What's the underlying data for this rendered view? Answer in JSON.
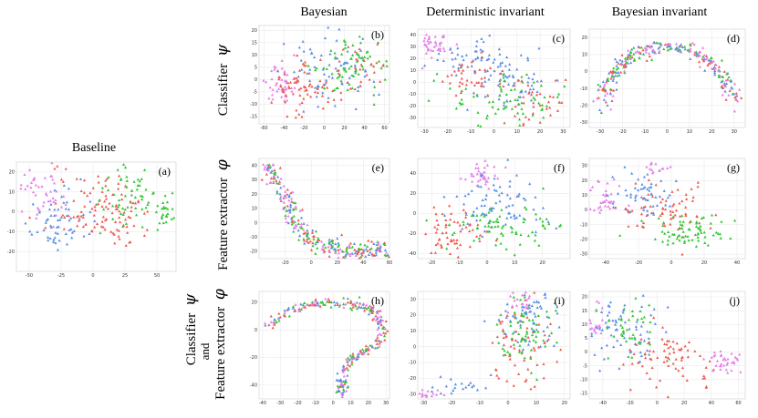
{
  "figure": {
    "column_titles": [
      "Bayesian",
      "Deterministic invariant",
      "Bayesian invariant"
    ],
    "baseline_title": "Baseline",
    "row_labels": [
      {
        "text": "Classifier",
        "symbol": "ψ"
      },
      {
        "text": "Feature extractor",
        "symbol": "φ"
      },
      {
        "line1": "Classifier",
        "symbol1": "ψ",
        "line2": "and",
        "line3": "Feature extractor",
        "symbol3": "φ"
      }
    ]
  },
  "colors": {
    "red": "#ee5a4f",
    "green": "#2fc62f",
    "blue": "#5b8ee6",
    "pink": "#e57ee8"
  },
  "chart_data": [
    {
      "id": "a",
      "label": "(a)",
      "type": "scatter",
      "shape": "blob",
      "xticks": [
        -50,
        -25,
        0,
        25,
        50
      ],
      "yticks": [
        20,
        10,
        0,
        -10,
        -20
      ],
      "xlim": [
        -60,
        65
      ],
      "ylim": [
        -30,
        25
      ],
      "clusters": [
        {
          "class": "pink",
          "cx": -40,
          "cy": 10,
          "sx": 9,
          "sy": 7,
          "n": 45
        },
        {
          "class": "blue",
          "cx": -30,
          "cy": -5,
          "sx": 12,
          "sy": 8,
          "n": 60
        },
        {
          "class": "red",
          "cx": 0,
          "cy": 5,
          "sx": 18,
          "sy": 9,
          "n": 70
        },
        {
          "class": "green",
          "cx": 30,
          "cy": 8,
          "sx": 14,
          "sy": 8,
          "n": 55
        },
        {
          "class": "green",
          "cx": 55,
          "cy": 0,
          "sx": 4,
          "sy": 5,
          "n": 25
        },
        {
          "class": "red",
          "cx": 20,
          "cy": -5,
          "sx": 16,
          "sy": 6,
          "n": 40
        }
      ]
    },
    {
      "id": "b",
      "label": "(b)",
      "type": "scatter",
      "shape": "blob",
      "xticks": [
        -60,
        -40,
        -20,
        0,
        20,
        40,
        60
      ],
      "yticks": [
        20,
        15,
        10,
        5,
        0,
        -5,
        -10,
        -15
      ],
      "xlim": [
        -65,
        65
      ],
      "ylim": [
        -18,
        22
      ],
      "clusters": [
        {
          "class": "pink",
          "cx": -45,
          "cy": -2,
          "sx": 9,
          "sy": 5,
          "n": 45
        },
        {
          "class": "red",
          "cx": -25,
          "cy": -5,
          "sx": 16,
          "sy": 5,
          "n": 70
        },
        {
          "class": "blue",
          "cx": 5,
          "cy": 3,
          "sx": 22,
          "sy": 7,
          "n": 70
        },
        {
          "class": "green",
          "cx": 25,
          "cy": 5,
          "sx": 18,
          "sy": 6,
          "n": 70
        },
        {
          "class": "red",
          "cx": 35,
          "cy": 5,
          "sx": 14,
          "sy": 5,
          "n": 30
        }
      ]
    },
    {
      "id": "c",
      "label": "(c)",
      "type": "scatter",
      "shape": "blob",
      "xticks": [
        -30,
        -20,
        -10,
        0,
        10,
        20,
        30
      ],
      "yticks": [
        40,
        30,
        20,
        10,
        0,
        -10,
        -20,
        -30
      ],
      "xlim": [
        -33,
        33
      ],
      "ylim": [
        -38,
        45
      ],
      "clusters": [
        {
          "class": "pink",
          "cx": -25,
          "cy": 33,
          "sx": 4,
          "sy": 6,
          "n": 40
        },
        {
          "class": "blue",
          "cx": -8,
          "cy": 20,
          "sx": 9,
          "sy": 8,
          "n": 55
        },
        {
          "class": "blue",
          "cx": 10,
          "cy": 0,
          "sx": 10,
          "sy": 9,
          "n": 50
        },
        {
          "class": "green",
          "cx": 5,
          "cy": -15,
          "sx": 12,
          "sy": 10,
          "n": 75
        },
        {
          "class": "red",
          "cx": -10,
          "cy": 5,
          "sx": 7,
          "sy": 8,
          "n": 40
        },
        {
          "class": "red",
          "cx": 20,
          "cy": -15,
          "sx": 8,
          "sy": 10,
          "n": 40
        }
      ]
    },
    {
      "id": "d",
      "label": "(d)",
      "type": "scatter",
      "shape": "arc",
      "xticks": [
        -30,
        -20,
        -10,
        0,
        10,
        20,
        30
      ],
      "yticks": [
        20,
        10,
        0,
        -10,
        -20,
        -30
      ],
      "xlim": [
        -35,
        35
      ],
      "ylim": [
        -33,
        25
      ],
      "arc": {
        "cx": 0,
        "cy": -25,
        "rx": 30,
        "ry": 40,
        "from": 175,
        "to": 5,
        "sigma": 2.2
      },
      "mix": [
        "red",
        "green",
        "blue",
        "pink"
      ],
      "n": 280
    },
    {
      "id": "e",
      "label": "(e)",
      "type": "scatter",
      "shape": "curve",
      "xticks": [
        -20,
        0,
        20,
        40,
        60
      ],
      "yticks": [
        40,
        30,
        20,
        10,
        0,
        -10,
        -20
      ],
      "xlim": [
        -40,
        60
      ],
      "ylim": [
        -25,
        45
      ],
      "curve": [
        [
          -35,
          38
        ],
        [
          -25,
          30
        ],
        [
          -18,
          15
        ],
        [
          -12,
          0
        ],
        [
          0,
          -12
        ],
        [
          15,
          -18
        ],
        [
          30,
          -20
        ],
        [
          45,
          -20
        ],
        [
          55,
          -17
        ]
      ],
      "sigma": 3.2,
      "mix": [
        "pink",
        "red",
        "green",
        "blue"
      ],
      "n": 280
    },
    {
      "id": "f",
      "label": "(f)",
      "type": "scatter",
      "shape": "blob",
      "xticks": [
        -20,
        -10,
        0,
        10,
        20
      ],
      "yticks": [
        40,
        20,
        0,
        -20,
        -40
      ],
      "xlim": [
        -25,
        30
      ],
      "ylim": [
        -45,
        55
      ],
      "clusters": [
        {
          "class": "pink",
          "cx": -2,
          "cy": 40,
          "sx": 4,
          "sy": 7,
          "n": 35
        },
        {
          "class": "blue",
          "cx": 5,
          "cy": 10,
          "sx": 9,
          "sy": 15,
          "n": 80
        },
        {
          "class": "green",
          "cx": 5,
          "cy": -15,
          "sx": 12,
          "sy": 10,
          "n": 75
        },
        {
          "class": "red",
          "cx": -12,
          "cy": -20,
          "sx": 7,
          "sy": 12,
          "n": 60
        }
      ]
    },
    {
      "id": "g",
      "label": "(g)",
      "type": "scatter",
      "shape": "blob",
      "xticks": [
        -40,
        -20,
        0,
        20,
        40
      ],
      "yticks": [
        30,
        20,
        10,
        0,
        -10,
        -20,
        -30
      ],
      "xlim": [
        -50,
        45
      ],
      "ylim": [
        -33,
        35
      ],
      "clusters": [
        {
          "class": "pink",
          "cx": -40,
          "cy": 8,
          "sx": 6,
          "sy": 7,
          "n": 35
        },
        {
          "class": "blue",
          "cx": -20,
          "cy": 10,
          "sx": 10,
          "sy": 8,
          "n": 55
        },
        {
          "class": "red",
          "cx": 0,
          "cy": 0,
          "sx": 14,
          "sy": 10,
          "n": 70
        },
        {
          "class": "green",
          "cx": 10,
          "cy": -15,
          "sx": 12,
          "sy": 6,
          "n": 70
        },
        {
          "class": "pink",
          "cx": -10,
          "cy": 28,
          "sx": 4,
          "sy": 3,
          "n": 15
        }
      ]
    },
    {
      "id": "h",
      "label": "(h)",
      "type": "scatter",
      "shape": "curve",
      "xticks": [
        -40,
        -30,
        -20,
        -10,
        0,
        10,
        20,
        30
      ],
      "yticks": [
        20,
        0,
        -20,
        -40
      ],
      "xlim": [
        -42,
        32
      ],
      "ylim": [
        -50,
        28
      ],
      "curve": [
        [
          -38,
          2
        ],
        [
          -28,
          12
        ],
        [
          -15,
          18
        ],
        [
          -5,
          20
        ],
        [
          5,
          20
        ],
        [
          15,
          18
        ],
        [
          22,
          15
        ],
        [
          27,
          8
        ],
        [
          28,
          0
        ],
        [
          25,
          -10
        ],
        [
          18,
          -15
        ],
        [
          10,
          -20
        ],
        [
          6,
          -30
        ],
        [
          5,
          -40
        ],
        [
          4,
          -46
        ]
      ],
      "sigma": 1.6,
      "mix": [
        "pink",
        "red",
        "green",
        "blue"
      ],
      "n": 280
    },
    {
      "id": "i",
      "label": "(i)",
      "type": "scatter",
      "shape": "blob",
      "xticks": [
        -30,
        -20,
        -10,
        0,
        10,
        20
      ],
      "yticks": [
        30,
        20,
        10,
        0,
        -10,
        -20,
        -30
      ],
      "xlim": [
        -32,
        22
      ],
      "ylim": [
        -33,
        35
      ],
      "clusters": [
        {
          "class": "pink",
          "cx": -28,
          "cy": -30,
          "sx": 3,
          "sy": 2,
          "n": 15
        },
        {
          "class": "blue",
          "cx": -18,
          "cy": -25,
          "sx": 5,
          "sy": 3,
          "n": 20
        },
        {
          "class": "red",
          "cx": 5,
          "cy": 0,
          "sx": 6,
          "sy": 15,
          "n": 65
        },
        {
          "class": "green",
          "cx": 5,
          "cy": 10,
          "sx": 5,
          "sy": 12,
          "n": 65
        },
        {
          "class": "blue",
          "cx": 7,
          "cy": 15,
          "sx": 5,
          "sy": 12,
          "n": 65
        },
        {
          "class": "pink",
          "cx": 6,
          "cy": 28,
          "sx": 3,
          "sy": 4,
          "n": 20
        }
      ]
    },
    {
      "id": "j",
      "label": "(j)",
      "type": "scatter",
      "shape": "blob",
      "xticks": [
        -40,
        -20,
        0,
        20,
        40,
        60
      ],
      "yticks": [
        20,
        15,
        10,
        5,
        0,
        -5,
        -10,
        -15
      ],
      "xlim": [
        -50,
        65
      ],
      "ylim": [
        -17,
        22
      ],
      "clusters": [
        {
          "class": "pink",
          "cx": -45,
          "cy": 12,
          "sx": 4,
          "sy": 4,
          "n": 25
        },
        {
          "class": "blue",
          "cx": -25,
          "cy": 5,
          "sx": 14,
          "sy": 6,
          "n": 70
        },
        {
          "class": "green",
          "cx": -20,
          "cy": 8,
          "sx": 10,
          "sy": 5,
          "n": 40
        },
        {
          "class": "red",
          "cx": 10,
          "cy": -3,
          "sx": 18,
          "sy": 6,
          "n": 70
        },
        {
          "class": "pink",
          "cx": 50,
          "cy": -3,
          "sx": 7,
          "sy": 2,
          "n": 35
        }
      ]
    }
  ]
}
